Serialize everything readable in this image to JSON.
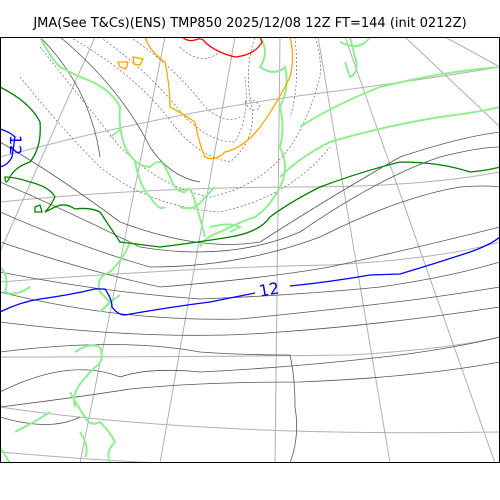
{
  "title": "JMA(See T&Cs)(ENS) TMP850 2025/12/08 12Z FT=144 (init 0212Z)",
  "map": {
    "isotherm_labels": [
      {
        "value": "12",
        "color": "#0000ff"
      },
      {
        "value": "12",
        "color": "#0000ff"
      }
    ],
    "colors": {
      "graticule": "#b0b0b0",
      "coastline": "#000000",
      "minor_contour": "#555555",
      "coast_green": "#90ee90",
      "contour_green": "#008000",
      "contour_blue": "#0000ff",
      "contour_orange": "#ffa500",
      "contour_red": "#ff0000"
    }
  }
}
